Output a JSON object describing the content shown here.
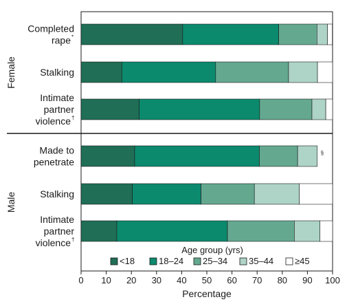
{
  "chart_data": {
    "type": "bar",
    "orientation": "horizontal",
    "stacked": true,
    "xlabel": "Percentage",
    "xlim": [
      0,
      100
    ],
    "xticks": [
      0,
      10,
      20,
      30,
      40,
      50,
      60,
      70,
      80,
      90,
      100
    ],
    "groups": [
      {
        "name": "Female",
        "categories": [
          {
            "lines": [
              "Completed",
              "rape"
            ],
            "sup": "*",
            "values": [
              40.4,
              38.2,
              15.2,
              4.2,
              1.9
            ]
          },
          {
            "lines": [
              "Stalking"
            ],
            "sup": "",
            "values": [
              16.2,
              37.3,
              29.0,
              11.5,
              6.0
            ]
          },
          {
            "lines": [
              "Intimate",
              "partner",
              "violence"
            ],
            "sup": "†",
            "values": [
              23.1,
              47.9,
              20.8,
              5.5,
              2.7
            ]
          }
        ]
      },
      {
        "name": "Male",
        "categories": [
          {
            "lines": [
              "Made to",
              "penetrate"
            ],
            "sup": "",
            "values": [
              21.3,
              49.6,
              15.2,
              7.8,
              0
            ],
            "note": "§"
          },
          {
            "lines": [
              "Stalking"
            ],
            "sup": "",
            "values": [
              20.4,
              27.3,
              21.2,
              17.9,
              13.2
            ]
          },
          {
            "lines": [
              "Intimate",
              "partner",
              "violence"
            ],
            "sup": "†",
            "values": [
              14.2,
              44.0,
              26.6,
              10.2,
              5.0
            ]
          }
        ]
      }
    ],
    "legend": {
      "title": "Age group (yrs)",
      "position": "bottom-right",
      "entries": [
        {
          "label": "<18",
          "color": "#1f6e55"
        },
        {
          "label": "18–24",
          "color": "#0b8a6e"
        },
        {
          "label": "25–34",
          "color": "#64a890"
        },
        {
          "label": "35–44",
          "color": "#aed3c7"
        },
        {
          "label": "≥45",
          "color": "#ffffff"
        }
      ]
    }
  }
}
